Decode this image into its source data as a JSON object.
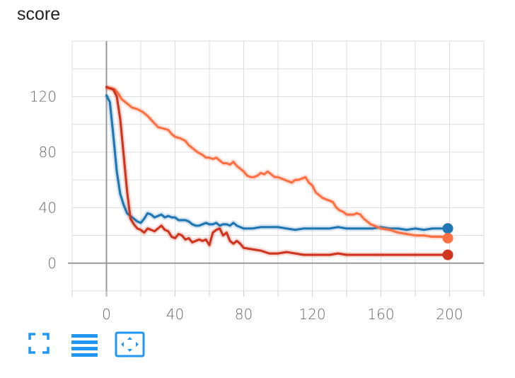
{
  "chart_data": {
    "type": "line",
    "title": "score",
    "xlabel": "",
    "ylabel": "",
    "xlim": [
      -20,
      220
    ],
    "ylim": [
      -20,
      160
    ],
    "x_ticks": [
      0,
      40,
      80,
      120,
      160,
      200
    ],
    "y_ticks": [
      0,
      40,
      80,
      120
    ],
    "grid": true,
    "legend": "none",
    "series": [
      {
        "color": "#1f77b4",
        "points": [
          [
            0,
            121
          ],
          [
            2,
            116
          ],
          [
            4,
            92
          ],
          [
            6,
            66
          ],
          [
            8,
            50
          ],
          [
            10,
            42
          ],
          [
            12,
            36
          ],
          [
            14,
            34
          ],
          [
            16,
            32
          ],
          [
            18,
            30
          ],
          [
            20,
            29
          ],
          [
            22,
            32
          ],
          [
            24,
            36
          ],
          [
            26,
            35
          ],
          [
            28,
            33
          ],
          [
            30,
            34
          ],
          [
            32,
            35
          ],
          [
            34,
            33
          ],
          [
            36,
            34
          ],
          [
            38,
            33
          ],
          [
            40,
            33
          ],
          [
            42,
            31
          ],
          [
            44,
            31
          ],
          [
            46,
            31
          ],
          [
            48,
            30
          ],
          [
            50,
            28
          ],
          [
            52,
            27
          ],
          [
            54,
            27
          ],
          [
            56,
            28
          ],
          [
            58,
            29
          ],
          [
            60,
            28
          ],
          [
            62,
            28
          ],
          [
            64,
            29
          ],
          [
            66,
            27
          ],
          [
            68,
            28
          ],
          [
            70,
            28
          ],
          [
            72,
            27
          ],
          [
            74,
            29
          ],
          [
            76,
            27
          ],
          [
            78,
            26
          ],
          [
            80,
            25
          ],
          [
            85,
            25
          ],
          [
            90,
            26
          ],
          [
            95,
            26
          ],
          [
            100,
            26
          ],
          [
            105,
            25
          ],
          [
            110,
            24
          ],
          [
            115,
            25
          ],
          [
            120,
            25
          ],
          [
            125,
            25
          ],
          [
            130,
            25
          ],
          [
            135,
            26
          ],
          [
            140,
            25
          ],
          [
            145,
            25
          ],
          [
            150,
            25
          ],
          [
            155,
            25
          ],
          [
            160,
            26
          ],
          [
            165,
            25
          ],
          [
            170,
            25
          ],
          [
            175,
            24
          ],
          [
            180,
            25
          ],
          [
            185,
            24
          ],
          [
            190,
            25
          ],
          [
            195,
            25
          ],
          [
            199,
            25
          ]
        ]
      },
      {
        "color": "#ff7043",
        "points": [
          [
            0,
            126
          ],
          [
            3,
            126
          ],
          [
            5,
            125
          ],
          [
            7,
            122
          ],
          [
            9,
            118
          ],
          [
            12,
            115
          ],
          [
            15,
            112
          ],
          [
            18,
            111
          ],
          [
            21,
            109
          ],
          [
            24,
            106
          ],
          [
            27,
            102
          ],
          [
            30,
            98
          ],
          [
            33,
            97
          ],
          [
            36,
            96
          ],
          [
            38,
            93
          ],
          [
            40,
            91
          ],
          [
            43,
            90
          ],
          [
            46,
            88
          ],
          [
            48,
            85
          ],
          [
            50,
            83
          ],
          [
            53,
            80
          ],
          [
            56,
            78
          ],
          [
            58,
            76
          ],
          [
            60,
            76
          ],
          [
            62,
            75
          ],
          [
            64,
            76
          ],
          [
            66,
            74
          ],
          [
            68,
            72
          ],
          [
            70,
            72
          ],
          [
            72,
            71
          ],
          [
            74,
            73
          ],
          [
            76,
            70
          ],
          [
            78,
            68
          ],
          [
            80,
            66
          ],
          [
            82,
            63
          ],
          [
            84,
            62
          ],
          [
            86,
            62
          ],
          [
            88,
            63
          ],
          [
            90,
            65
          ],
          [
            92,
            64
          ],
          [
            94,
            66
          ],
          [
            96,
            64
          ],
          [
            98,
            62
          ],
          [
            100,
            62
          ],
          [
            102,
            61
          ],
          [
            104,
            60
          ],
          [
            106,
            59
          ],
          [
            108,
            58
          ],
          [
            110,
            60
          ],
          [
            112,
            60
          ],
          [
            114,
            61
          ],
          [
            116,
            62
          ],
          [
            118,
            58
          ],
          [
            120,
            56
          ],
          [
            122,
            51
          ],
          [
            124,
            49
          ],
          [
            126,
            47
          ],
          [
            128,
            46
          ],
          [
            130,
            45
          ],
          [
            132,
            44
          ],
          [
            134,
            40
          ],
          [
            136,
            38
          ],
          [
            138,
            37
          ],
          [
            140,
            35
          ],
          [
            142,
            35
          ],
          [
            144,
            35
          ],
          [
            146,
            36
          ],
          [
            148,
            35
          ],
          [
            150,
            32
          ],
          [
            152,
            30
          ],
          [
            154,
            28
          ],
          [
            156,
            27
          ],
          [
            158,
            26
          ],
          [
            160,
            25
          ],
          [
            165,
            24
          ],
          [
            170,
            22
          ],
          [
            175,
            21
          ],
          [
            180,
            20
          ],
          [
            185,
            20
          ],
          [
            190,
            19
          ],
          [
            195,
            19
          ],
          [
            199,
            18
          ]
        ]
      },
      {
        "color": "#d0351f",
        "points": [
          [
            0,
            127
          ],
          [
            2,
            126
          ],
          [
            4,
            125
          ],
          [
            6,
            120
          ],
          [
            8,
            104
          ],
          [
            10,
            78
          ],
          [
            12,
            52
          ],
          [
            13,
            42
          ],
          [
            14,
            32
          ],
          [
            16,
            28
          ],
          [
            18,
            25
          ],
          [
            20,
            24
          ],
          [
            22,
            22
          ],
          [
            24,
            25
          ],
          [
            26,
            24
          ],
          [
            28,
            23
          ],
          [
            30,
            25
          ],
          [
            32,
            27
          ],
          [
            34,
            24
          ],
          [
            36,
            23
          ],
          [
            38,
            19
          ],
          [
            40,
            18
          ],
          [
            42,
            21
          ],
          [
            44,
            20
          ],
          [
            46,
            17
          ],
          [
            48,
            18
          ],
          [
            50,
            15
          ],
          [
            52,
            16
          ],
          [
            54,
            17
          ],
          [
            56,
            16
          ],
          [
            58,
            17
          ],
          [
            60,
            13
          ],
          [
            62,
            22
          ],
          [
            64,
            24
          ],
          [
            66,
            25
          ],
          [
            68,
            20
          ],
          [
            70,
            22
          ],
          [
            72,
            16
          ],
          [
            74,
            14
          ],
          [
            76,
            16
          ],
          [
            78,
            14
          ],
          [
            80,
            11
          ],
          [
            85,
            10
          ],
          [
            90,
            9
          ],
          [
            95,
            7
          ],
          [
            100,
            7
          ],
          [
            105,
            8
          ],
          [
            110,
            7
          ],
          [
            115,
            6
          ],
          [
            120,
            6
          ],
          [
            125,
            6
          ],
          [
            130,
            6
          ],
          [
            135,
            7
          ],
          [
            140,
            6
          ],
          [
            145,
            6
          ],
          [
            150,
            6
          ],
          [
            155,
            6
          ],
          [
            160,
            6
          ],
          [
            165,
            6
          ],
          [
            170,
            6
          ],
          [
            175,
            6
          ],
          [
            180,
            6
          ],
          [
            185,
            6
          ],
          [
            190,
            6
          ],
          [
            195,
            6
          ],
          [
            199,
            6
          ]
        ]
      }
    ]
  },
  "toolbar": {
    "fullscreen_icon": "fullscreen-icon",
    "data_table_icon": "list-icon",
    "fit_domain_icon": "fit-domain-icon",
    "icon_color": "#2196f3"
  }
}
